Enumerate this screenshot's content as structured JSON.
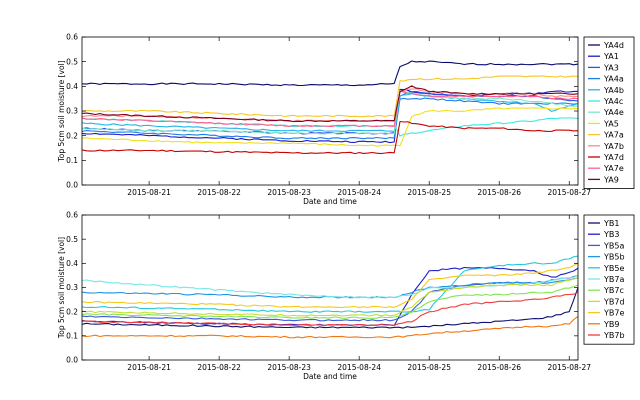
{
  "chart_data": [
    {
      "type": "line",
      "xlabel": "Date and time",
      "ylabel": "Top 5cm soil moisture [vol]",
      "ylim": [
        0.0,
        0.6
      ],
      "yticks": [
        "0.0",
        "0.1",
        "0.2",
        "0.3",
        "0.4",
        "0.5",
        "0.6"
      ],
      "xlim": [
        "2015-08-20T01:00",
        "2015-08-27T03:00"
      ],
      "xticks": [
        "2015-08-21",
        "2015-08-22",
        "2015-08-23",
        "2015-08-24",
        "2015-08-25",
        "2015-08-26",
        "2015-08-27"
      ],
      "legend": "outside-right",
      "x": [
        "2015-08-20T01:00",
        "2015-08-21T00:00",
        "2015-08-22T00:00",
        "2015-08-23T00:00",
        "2015-08-24T00:00",
        "2015-08-24T12:00",
        "2015-08-24T14:00",
        "2015-08-24T18:00",
        "2015-08-25T00:00",
        "2015-08-25T12:00",
        "2015-08-26T00:00",
        "2015-08-26T12:00",
        "2015-08-26T18:00",
        "2015-08-27T03:00"
      ],
      "series": [
        {
          "name": "YA4d",
          "color": "#0a0a6e",
          "values": [
            0.41,
            0.41,
            0.41,
            0.405,
            0.405,
            0.41,
            0.48,
            0.5,
            0.5,
            0.49,
            0.49,
            0.49,
            0.49,
            0.49
          ]
        },
        {
          "name": "YA1",
          "color": "#1919c8",
          "values": [
            0.21,
            0.2,
            0.19,
            0.18,
            0.175,
            0.175,
            0.39,
            0.38,
            0.37,
            0.36,
            0.37,
            0.37,
            0.38,
            0.38
          ]
        },
        {
          "name": "YA3",
          "color": "#2e56e8",
          "values": [
            0.23,
            0.22,
            0.22,
            0.21,
            0.21,
            0.21,
            0.36,
            0.38,
            0.37,
            0.36,
            0.36,
            0.36,
            0.35,
            0.34
          ]
        },
        {
          "name": "YA4a",
          "color": "#1e7ee8",
          "values": [
            0.22,
            0.21,
            0.2,
            0.19,
            0.19,
            0.19,
            0.35,
            0.35,
            0.35,
            0.34,
            0.33,
            0.33,
            0.33,
            0.33
          ]
        },
        {
          "name": "YA4b",
          "color": "#28b4e8",
          "values": [
            0.25,
            0.24,
            0.23,
            0.22,
            0.22,
            0.22,
            0.36,
            0.37,
            0.36,
            0.35,
            0.34,
            0.33,
            0.3,
            0.33
          ]
        },
        {
          "name": "YA4c",
          "color": "#3ce8e0",
          "values": [
            0.27,
            0.26,
            0.25,
            0.24,
            0.24,
            0.24,
            0.2,
            0.21,
            0.22,
            0.24,
            0.25,
            0.26,
            0.27,
            0.27
          ]
        },
        {
          "name": "YA4e",
          "color": "#7ee8c8",
          "values": [
            0.23,
            0.22,
            0.22,
            0.21,
            0.21,
            0.21,
            0.38,
            0.37,
            0.36,
            0.35,
            0.35,
            0.34,
            0.33,
            0.32
          ]
        },
        {
          "name": "YA5",
          "color": "#f0e020",
          "values": [
            0.19,
            0.18,
            0.17,
            0.17,
            0.16,
            0.16,
            0.16,
            0.28,
            0.3,
            0.3,
            0.31,
            0.31,
            0.31,
            0.31
          ]
        },
        {
          "name": "YA7a",
          "color": "#f5c828",
          "values": [
            0.3,
            0.3,
            0.29,
            0.28,
            0.28,
            0.28,
            0.42,
            0.43,
            0.43,
            0.43,
            0.44,
            0.44,
            0.44,
            0.44
          ]
        },
        {
          "name": "YA7b",
          "color": "#ff8c80",
          "values": [
            0.28,
            0.28,
            0.27,
            0.26,
            0.26,
            0.26,
            0.38,
            0.39,
            0.38,
            0.37,
            0.37,
            0.37,
            0.36,
            0.36
          ]
        },
        {
          "name": "YA7d",
          "color": "#c80000",
          "values": [
            0.14,
            0.14,
            0.135,
            0.13,
            0.13,
            0.13,
            0.26,
            0.25,
            0.24,
            0.23,
            0.23,
            0.22,
            0.22,
            0.22
          ]
        },
        {
          "name": "YA7e",
          "color": "#ff6090",
          "values": [
            0.27,
            0.26,
            0.25,
            0.24,
            0.24,
            0.24,
            0.38,
            0.37,
            0.36,
            0.36,
            0.36,
            0.36,
            0.35,
            0.35
          ]
        },
        {
          "name": "YA9",
          "color": "#800020",
          "values": [
            0.29,
            0.28,
            0.27,
            0.26,
            0.26,
            0.26,
            0.38,
            0.4,
            0.38,
            0.37,
            0.37,
            0.37,
            0.37,
            0.37
          ]
        }
      ]
    },
    {
      "type": "line",
      "xlabel": "Date and time",
      "ylabel": "Top 5cm soil moisture [vol]",
      "ylim": [
        0.0,
        0.6
      ],
      "yticks": [
        "0.0",
        "0.1",
        "0.2",
        "0.3",
        "0.4",
        "0.5",
        "0.6"
      ],
      "xlim": [
        "2015-08-20T01:00",
        "2015-08-27T03:00"
      ],
      "xticks": [
        "2015-08-21",
        "2015-08-22",
        "2015-08-23",
        "2015-08-24",
        "2015-08-25",
        "2015-08-26",
        "2015-08-27"
      ],
      "legend": "outside-right",
      "x": [
        "2015-08-20T01:00",
        "2015-08-21T00:00",
        "2015-08-22T00:00",
        "2015-08-23T00:00",
        "2015-08-24T00:00",
        "2015-08-24T12:00",
        "2015-08-24T18:00",
        "2015-08-25T00:00",
        "2015-08-25T12:00",
        "2015-08-26T00:00",
        "2015-08-26T12:00",
        "2015-08-26T18:00",
        "2015-08-27T00:00",
        "2015-08-27T03:00"
      ],
      "series": [
        {
          "name": "YB1",
          "color": "#10106e",
          "values": [
            0.15,
            0.145,
            0.14,
            0.135,
            0.135,
            0.135,
            0.135,
            0.14,
            0.15,
            0.16,
            0.17,
            0.18,
            0.2,
            0.3
          ]
        },
        {
          "name": "YB3",
          "color": "#1e1ec8",
          "values": [
            0.16,
            0.155,
            0.15,
            0.145,
            0.145,
            0.145,
            0.27,
            0.37,
            0.38,
            0.38,
            0.37,
            0.34,
            0.36,
            0.38
          ]
        },
        {
          "name": "YB5a",
          "color": "#3c5ae6",
          "values": [
            0.18,
            0.175,
            0.17,
            0.165,
            0.165,
            0.165,
            0.2,
            0.28,
            0.31,
            0.32,
            0.32,
            0.33,
            0.34,
            0.35
          ]
        },
        {
          "name": "YB5b",
          "color": "#1e96e6",
          "values": [
            0.28,
            0.275,
            0.27,
            0.26,
            0.26,
            0.26,
            0.28,
            0.3,
            0.31,
            0.32,
            0.32,
            0.32,
            0.33,
            0.34
          ]
        },
        {
          "name": "YB5e",
          "color": "#28c8dc",
          "values": [
            0.22,
            0.215,
            0.21,
            0.2,
            0.2,
            0.2,
            0.2,
            0.21,
            0.37,
            0.39,
            0.4,
            0.4,
            0.42,
            0.43
          ]
        },
        {
          "name": "YB7a",
          "color": "#78e6e6",
          "values": [
            0.33,
            0.31,
            0.29,
            0.27,
            0.26,
            0.26,
            0.27,
            0.3,
            0.3,
            0.31,
            0.32,
            0.33,
            0.34,
            0.35
          ]
        },
        {
          "name": "YB7c",
          "color": "#82e650",
          "values": [
            0.19,
            0.185,
            0.18,
            0.175,
            0.175,
            0.175,
            0.2,
            0.24,
            0.27,
            0.27,
            0.28,
            0.28,
            0.3,
            0.31
          ]
        },
        {
          "name": "YB7d",
          "color": "#c8dc32",
          "values": [
            0.2,
            0.195,
            0.19,
            0.185,
            0.185,
            0.185,
            0.22,
            0.28,
            0.3,
            0.31,
            0.31,
            0.31,
            0.33,
            0.34
          ]
        },
        {
          "name": "YB7e",
          "color": "#f5c81e",
          "values": [
            0.24,
            0.235,
            0.23,
            0.22,
            0.22,
            0.22,
            0.25,
            0.33,
            0.35,
            0.35,
            0.36,
            0.37,
            0.38,
            0.4
          ]
        },
        {
          "name": "YB9",
          "color": "#f07814",
          "values": [
            0.1,
            0.1,
            0.1,
            0.095,
            0.095,
            0.095,
            0.1,
            0.11,
            0.12,
            0.13,
            0.14,
            0.14,
            0.15,
            0.18
          ]
        },
        {
          "name": "YB7b",
          "color": "#f03c3c",
          "values": [
            0.16,
            0.155,
            0.15,
            0.145,
            0.145,
            0.145,
            0.16,
            0.2,
            0.23,
            0.24,
            0.25,
            0.26,
            0.27,
            0.28
          ]
        }
      ]
    }
  ]
}
